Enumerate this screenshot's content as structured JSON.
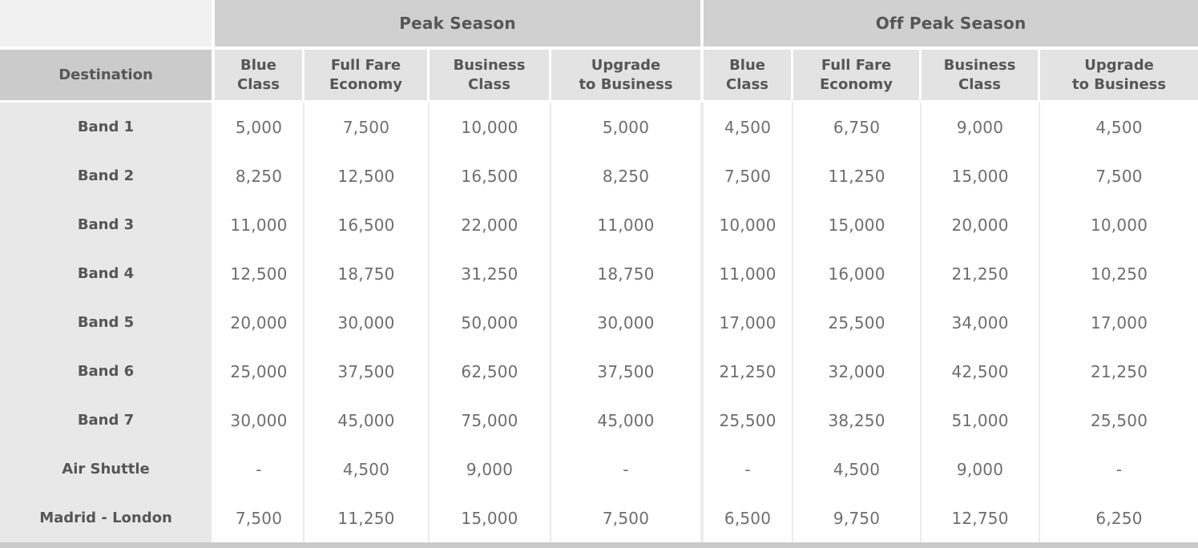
{
  "chart_data": {
    "type": "table",
    "header": {
      "corner": "",
      "groups": [
        {
          "label": "Peak Season",
          "colspan": 4
        },
        {
          "label": "Off Peak Season",
          "colspan": 4
        }
      ],
      "destination": "Destination",
      "columns": [
        "Blue\nClass",
        "Full Fare\nEconomy",
        "Business\nClass",
        "Upgrade\nto Business",
        "Blue\nClass",
        "Full Fare\nEconomy",
        "Business\nClass",
        "Upgrade\nto Business"
      ]
    },
    "rows": [
      {
        "label": "Band 1",
        "values": [
          "5,000",
          "7,500",
          "10,000",
          "5,000",
          "4,500",
          "6,750",
          "9,000",
          "4,500"
        ]
      },
      {
        "label": "Band 2",
        "values": [
          "8,250",
          "12,500",
          "16,500",
          "8,250",
          "7,500",
          "11,250",
          "15,000",
          "7,500"
        ]
      },
      {
        "label": "Band 3",
        "values": [
          "11,000",
          "16,500",
          "22,000",
          "11,000",
          "10,000",
          "15,000",
          "20,000",
          "10,000"
        ]
      },
      {
        "label": "Band 4",
        "values": [
          "12,500",
          "18,750",
          "31,250",
          "18,750",
          "11,000",
          "16,000",
          "21,250",
          "10,250"
        ]
      },
      {
        "label": "Band 5",
        "values": [
          "20,000",
          "30,000",
          "50,000",
          "30,000",
          "17,000",
          "25,500",
          "34,000",
          "17,000"
        ]
      },
      {
        "label": "Band 6",
        "values": [
          "25,000",
          "37,500",
          "62,500",
          "37,500",
          "21,250",
          "32,000",
          "42,500",
          "21,250"
        ]
      },
      {
        "label": "Band 7",
        "values": [
          "30,000",
          "45,000",
          "75,000",
          "45,000",
          "25,500",
          "38,250",
          "51,000",
          "25,500"
        ]
      },
      {
        "label": "Air Shuttle",
        "values": [
          "-",
          "4,500",
          "9,000",
          "-",
          "-",
          "4,500",
          "9,000",
          "-"
        ]
      },
      {
        "label": "Madrid - London",
        "values": [
          "7,500",
          "11,250",
          "15,000",
          "7,500",
          "6,500",
          "9,750",
          "12,750",
          "6,250"
        ]
      }
    ]
  },
  "colors": {
    "corner_bg": "#f1f1f1",
    "season_band_bg": "#d0d0d0",
    "destination_bg": "#cbcbcb",
    "subheader_bg": "#e3e3e3",
    "row_label_bg": "#e8e8e8",
    "cell_bg": "#ffffff",
    "header_text": "#565656",
    "value_text": "#6e6e6e",
    "cell_separator": "#ececec",
    "bottom_border": "#c9c9c9"
  }
}
